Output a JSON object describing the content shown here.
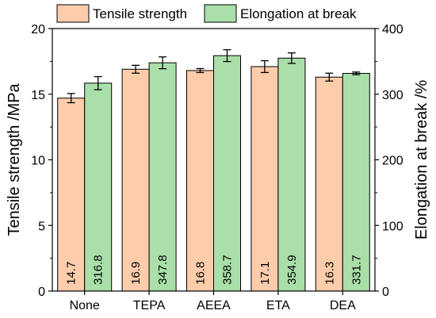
{
  "chart_data": {
    "type": "bar",
    "categories": [
      "None",
      "TEPA",
      "AEEA",
      "ETA",
      "DEA"
    ],
    "series": [
      {
        "name": "Tensile strength",
        "axis": "left",
        "values": [
          14.7,
          16.9,
          16.8,
          17.1,
          16.3
        ],
        "error": [
          0.35,
          0.3,
          0.15,
          0.45,
          0.3
        ],
        "labels": [
          "14.7",
          "16.9",
          "16.8",
          "17.1",
          "16.3"
        ],
        "color": "#FDCCAB"
      },
      {
        "name": "Elongation at break",
        "axis": "right",
        "values": [
          316.8,
          347.8,
          358.7,
          354.9,
          331.7
        ],
        "error": [
          10,
          9,
          9,
          8,
          2
        ],
        "labels": [
          "316.8",
          "347.8",
          "358.7",
          "354.9",
          "331.7"
        ],
        "color": "#A9DFA9"
      }
    ],
    "ylabel_left": "Tensile strength /MPa",
    "ylabel_right": "Elongation at break /%",
    "ylim_left": [
      0,
      20
    ],
    "ylim_right": [
      0,
      400
    ],
    "yticks_left": [
      "0",
      "5",
      "10",
      "15",
      "20"
    ],
    "yticks_right": [
      "0",
      "100",
      "200",
      "300",
      "400"
    ],
    "grid": false,
    "legend_position": "top"
  }
}
